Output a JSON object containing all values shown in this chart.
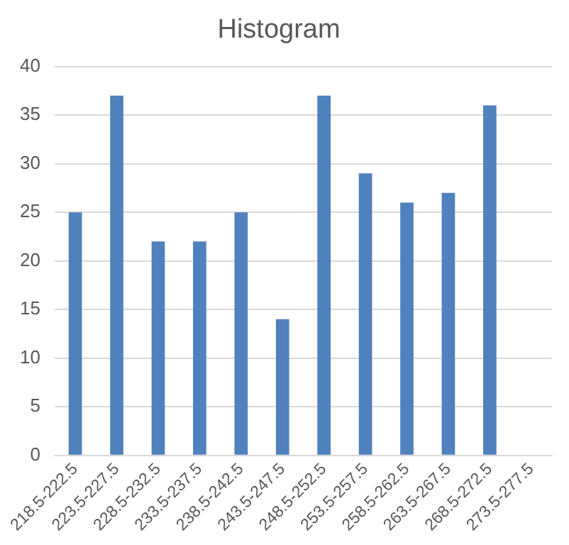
{
  "chart_data": {
    "type": "bar",
    "title": "Histogram",
    "categories": [
      "218.5-222.5",
      "223.5-227.5",
      "228.5-232.5",
      "233.5-237.5",
      "238.5-242.5",
      "243.5-247.5",
      "248.5-252.5",
      "253.5-257.5",
      "258.5-262.5",
      "263.5-267.5",
      "268.5-272.5",
      "273.5-277.5"
    ],
    "values": [
      25,
      37,
      22,
      22,
      25,
      14,
      37,
      29,
      26,
      27,
      36,
      null
    ],
    "color": "#4f81bd",
    "ylim": [
      0,
      40
    ],
    "yticks": [
      0,
      5,
      10,
      15,
      20,
      25,
      30,
      35,
      40
    ],
    "grid": "y",
    "legend": false
  }
}
